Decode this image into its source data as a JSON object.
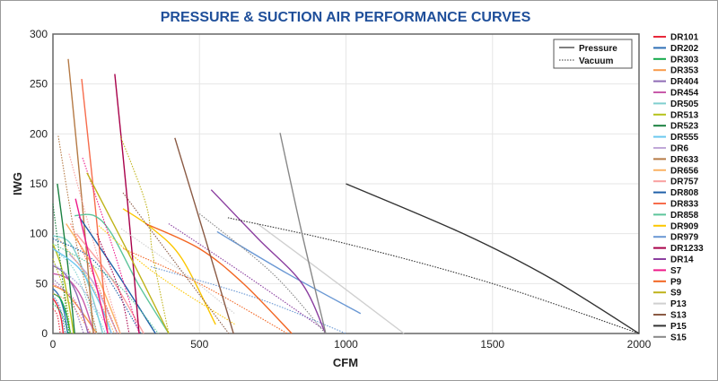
{
  "chart_data": {
    "type": "line",
    "title": "PRESSURE & SUCTION AIR PERFORMANCE CURVES",
    "xlabel": "CFM",
    "ylabel": "IWG",
    "xlim": [
      0,
      2000
    ],
    "ylim": [
      0,
      300
    ],
    "xticks": [
      0,
      500,
      1000,
      1500,
      2000
    ],
    "yticks": [
      0,
      50,
      100,
      150,
      200,
      250,
      300
    ],
    "grid": true,
    "legend_position": "right",
    "line_type_legend": {
      "position": "top-right",
      "pressure_label": "Pressure",
      "vacuum_label": "Vacuum"
    },
    "series": [
      {
        "name": "DR101",
        "color": "#e8283a",
        "pressure": [
          [
            0,
            35
          ],
          [
            15,
            28
          ],
          [
            28,
            15
          ],
          [
            35,
            0
          ]
        ],
        "vacuum": [
          [
            0,
            25
          ],
          [
            15,
            18
          ],
          [
            25,
            0
          ]
        ]
      },
      {
        "name": "DR202",
        "color": "#2f6fb5",
        "pressure": [
          [
            0,
            45
          ],
          [
            20,
            38
          ],
          [
            38,
            22
          ],
          [
            50,
            0
          ]
        ],
        "vacuum": [
          [
            0,
            38
          ],
          [
            25,
            25
          ],
          [
            42,
            0
          ]
        ]
      },
      {
        "name": "DR303",
        "color": "#12a84a",
        "pressure": [
          [
            0,
            40
          ],
          [
            25,
            35
          ],
          [
            45,
            20
          ],
          [
            60,
            0
          ]
        ],
        "vacuum": [
          [
            0,
            30
          ],
          [
            30,
            20
          ],
          [
            52,
            0
          ]
        ]
      },
      {
        "name": "DR353",
        "color": "#f89a4a",
        "pressure": [
          [
            0,
            48
          ],
          [
            40,
            42
          ],
          [
            90,
            25
          ],
          [
            150,
            0
          ]
        ],
        "vacuum": [
          [
            0,
            40
          ],
          [
            60,
            30
          ],
          [
            130,
            0
          ]
        ]
      },
      {
        "name": "DR404",
        "color": "#8e6bb5",
        "pressure": [
          [
            0,
            68
          ],
          [
            40,
            60
          ],
          [
            80,
            40
          ],
          [
            120,
            0
          ]
        ],
        "vacuum": [
          [
            0,
            55
          ],
          [
            60,
            35
          ],
          [
            105,
            0
          ]
        ]
      },
      {
        "name": "DR454",
        "color": "#c85aaa",
        "pressure": [
          [
            0,
            60
          ],
          [
            50,
            55
          ],
          [
            100,
            35
          ],
          [
            140,
            0
          ]
        ],
        "vacuum": [
          [
            0,
            50
          ],
          [
            70,
            35
          ],
          [
            125,
            0
          ]
        ]
      },
      {
        "name": "DR505",
        "color": "#7fcfcf",
        "pressure": [
          [
            0,
            98
          ],
          [
            60,
            90
          ],
          [
            120,
            50
          ],
          [
            170,
            0
          ]
        ],
        "vacuum": [
          [
            0,
            85
          ],
          [
            80,
            60
          ],
          [
            150,
            0
          ]
        ]
      },
      {
        "name": "DR513",
        "color": "#b5c21b",
        "pressure": [
          [
            0,
            90
          ],
          [
            30,
            65
          ],
          [
            60,
            20
          ],
          [
            70,
            0
          ]
        ],
        "vacuum": [
          [
            0,
            75
          ],
          [
            40,
            40
          ],
          [
            60,
            0
          ]
        ]
      },
      {
        "name": "DR523",
        "color": "#1a8040",
        "pressure": [
          [
            15,
            150
          ],
          [
            50,
            70
          ],
          [
            74,
            0
          ]
        ],
        "vacuum": [
          [
            0,
            130
          ],
          [
            30,
            60
          ],
          [
            55,
            0
          ]
        ]
      },
      {
        "name": "DR555",
        "color": "#6cc8ef",
        "pressure": [
          [
            0,
            85
          ],
          [
            90,
            65
          ],
          [
            160,
            30
          ],
          [
            200,
            0
          ]
        ],
        "vacuum": [
          [
            0,
            70
          ],
          [
            100,
            45
          ],
          [
            180,
            0
          ]
        ]
      },
      {
        "name": "DR6",
        "color": "#c0a8d8",
        "pressure": [
          [
            55,
            80
          ],
          [
            140,
            50
          ],
          [
            220,
            0
          ]
        ],
        "vacuum": [
          [
            0,
            70
          ],
          [
            100,
            45
          ],
          [
            200,
            0
          ]
        ]
      },
      {
        "name": "DR633",
        "color": "#b57a45",
        "pressure": [
          [
            52,
            275
          ],
          [
            100,
            130
          ],
          [
            138,
            0
          ]
        ],
        "vacuum": [
          [
            18,
            198
          ],
          [
            80,
            90
          ],
          [
            150,
            0
          ]
        ]
      },
      {
        "name": "DR656",
        "color": "#fbb366",
        "pressure": [
          [
            45,
            110
          ],
          [
            140,
            65
          ],
          [
            230,
            0
          ]
        ],
        "vacuum": [
          [
            20,
            95
          ],
          [
            120,
            55
          ],
          [
            210,
            0
          ]
        ]
      },
      {
        "name": "DR757",
        "color": "#f9a0a0",
        "pressure": [
          [
            80,
            100
          ],
          [
            200,
            55
          ],
          [
            310,
            0
          ]
        ],
        "vacuum": [
          [
            55,
            180
          ],
          [
            140,
            90
          ],
          [
            230,
            0
          ]
        ]
      },
      {
        "name": "DR808",
        "color": "#1f5fa8",
        "pressure": [
          [
            89,
            117
          ],
          [
            220,
            60
          ],
          [
            350,
            0
          ]
        ],
        "vacuum": [
          [
            0,
            95
          ],
          [
            150,
            70
          ],
          [
            300,
            0
          ]
        ]
      },
      {
        "name": "DR833",
        "color": "#f76c4c",
        "pressure": [
          [
            98,
            255
          ],
          [
            145,
            125
          ],
          [
            187,
            0
          ]
        ],
        "vacuum": [
          [
            60,
            110
          ],
          [
            150,
            50
          ],
          [
            220,
            0
          ]
        ]
      },
      {
        "name": "DR858",
        "color": "#5cc59b",
        "pressure": [
          [
            74,
            118
          ],
          [
            141,
            118
          ],
          [
            200,
            100
          ],
          [
            290,
            50
          ],
          [
            395,
            0
          ]
        ],
        "vacuum": [
          [
            0,
            90
          ],
          [
            200,
            55
          ],
          [
            360,
            0
          ]
        ]
      },
      {
        "name": "DR909",
        "color": "#fcc700",
        "pressure": [
          [
            239,
            125
          ],
          [
            340,
            105
          ],
          [
            440,
            75
          ],
          [
            555,
            9
          ]
        ],
        "vacuum": [
          [
            156,
            108
          ],
          [
            350,
            60
          ],
          [
            622,
            9
          ]
        ]
      },
      {
        "name": "DR979",
        "color": "#6a98d4",
        "pressure": [
          [
            560,
            102
          ],
          [
            800,
            60
          ],
          [
            1050,
            20
          ]
        ],
        "vacuum": [
          [
            334,
            67
          ],
          [
            700,
            35
          ],
          [
            1000,
            0
          ]
        ]
      },
      {
        "name": "DR1233",
        "color": "#a8004a",
        "pressure": [
          [
            211,
            260
          ],
          [
            255,
            130
          ],
          [
            294,
            0
          ]
        ],
        "vacuum": [
          [
            150,
            100
          ],
          [
            230,
            40
          ],
          [
            260,
            0
          ]
        ]
      },
      {
        "name": "DR14",
        "color": "#8b3fa0",
        "pressure": [
          [
            540,
            144
          ],
          [
            700,
            95
          ],
          [
            850,
            50
          ],
          [
            930,
            0
          ]
        ],
        "vacuum": [
          [
            395,
            110
          ],
          [
            650,
            60
          ],
          [
            920,
            5
          ]
        ]
      },
      {
        "name": "S7",
        "color": "#ee1a8a",
        "pressure": [
          [
            77,
            135
          ],
          [
            130,
            70
          ],
          [
            187,
            0
          ]
        ],
        "vacuum": [
          [
            101,
            176
          ],
          [
            200,
            90
          ],
          [
            294,
            0
          ]
        ]
      },
      {
        "name": "P9",
        "color": "#f26522",
        "pressure": [
          [
            316,
            110
          ],
          [
            500,
            85
          ],
          [
            650,
            50
          ],
          [
            815,
            0
          ]
        ],
        "vacuum": [
          [
            240,
            85
          ],
          [
            500,
            50
          ],
          [
            800,
            0
          ]
        ]
      },
      {
        "name": "S9",
        "color": "#bfb31a",
        "pressure": [
          [
            116,
            161
          ],
          [
            250,
            85
          ],
          [
            395,
            0
          ]
        ],
        "vacuum": [
          [
            230,
            198
          ],
          [
            319,
            128
          ],
          [
            340,
            80
          ],
          [
            395,
            0
          ]
        ]
      },
      {
        "name": "P13",
        "color": "#d0d0d0",
        "pressure": [
          [
            698,
            110
          ],
          [
            950,
            55
          ],
          [
            1198,
            0
          ]
        ],
        "vacuum": [
          [
            233,
            105
          ],
          [
            450,
            60
          ],
          [
            620,
            20
          ]
        ]
      },
      {
        "name": "S13",
        "color": "#8a5a44",
        "pressure": [
          [
            416,
            196
          ],
          [
            520,
            95
          ],
          [
            616,
            0
          ]
        ],
        "vacuum": [
          [
            239,
            141
          ],
          [
            420,
            70
          ],
          [
            600,
            0
          ]
        ]
      },
      {
        "name": "P15",
        "color": "#333333",
        "pressure": [
          [
            1000,
            150
          ],
          [
            1400,
            100
          ],
          [
            1700,
            55
          ],
          [
            2000,
            0
          ]
        ],
        "vacuum": [
          [
            597,
            116
          ],
          [
            1000,
            90
          ],
          [
            1500,
            50
          ],
          [
            2000,
            0
          ]
        ]
      },
      {
        "name": "S15",
        "color": "#888888",
        "pressure": [
          [
            775,
            201
          ],
          [
            850,
            100
          ],
          [
            931,
            0
          ]
        ],
        "vacuum": [
          [
            500,
            120
          ],
          [
            750,
            60
          ],
          [
            930,
            0
          ]
        ]
      }
    ]
  }
}
